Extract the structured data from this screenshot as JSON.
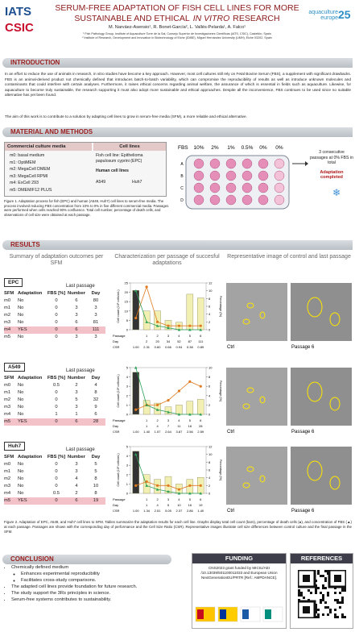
{
  "header": {
    "logos": [
      "IATS",
      "CSIC"
    ],
    "title_line1": "SERUM-FREE ADAPTATION OF FISH CELL LINES FOR MORE",
    "title_line2": [
      "SUSTAINABLE AND ETHICAL",
      "IN VITRO",
      "RESEARCH"
    ],
    "authors": "M. Narváez-Asensio¹, R. Bonet-García², L. Vallés-Pelarda¹, A. Falco¹",
    "affiliations": [
      "¹ Fish Pathology Group, Institute of Aquaculture Torre de la Sal, Consejo Superior de Investigaciones Científicas (IATS, CSIC), Castellón, Spain",
      "² Institute of Research, Development and Innovation in Biotechnology of Elche (IDiBE), Miguel Hernández University (UMH), Elche 03202, Spain"
    ],
    "event": [
      "aquaculture",
      "europe",
      "25"
    ]
  },
  "introduction": {
    "heading": "INTRODUCTION",
    "text": "In an effort to reduce the use of animals in research, in vitro studies have become a key approach. However, most cell cultures still rely on Fetal Bovine Serum (FBS), a supplement with significant drawbacks. FBS is an animal-derived product not chemically defined that introduces batch-to-batch variability, which can compromise the reproducibility of results as well as introduce unknown molecules and contaminants that could interfere with certain analyses. Furthermore, it raises ethical concerns regarding animal welfare, the assurance of which is essential in fields such as aquaculture. Likewise, for aquaculture to become truly sustainable, the research supporting it must also adopt more sustainable and ethical approaches. Despite all the inconvenience, FBS continues to be used since no suitable alternative has yet been found.",
    "aim": "The aim of this work is to contribute to a solution by adapting cell lines to grow in serum-free media (SFM), a more reliable and ethical alternative."
  },
  "methods": {
    "heading": "MATERIAL AND METHODS",
    "media_title": "Commercial culture media",
    "media": [
      "m0: basal medium",
      "m1: OptiMEM",
      "m2: MegaCell DMEM",
      "m3: MegaCell RPMI",
      "m4: ExCell 293",
      "m5: DMEM/F12 PLUS"
    ],
    "cells_title": "Cell lines",
    "fish": "Fish cell line: Epithelioma papulosum cyprini (EPC)",
    "human_title": "Human cell lines",
    "human": [
      "A549",
      "Huh7"
    ],
    "plate_label": "FBS",
    "plate_fbs": [
      "10%",
      "2%",
      "1%",
      "0.5%",
      "0%",
      "0%"
    ],
    "plate_rows": [
      "A",
      "B",
      "C",
      "D"
    ],
    "passages_note": "3 consecutive passages at 0% FBS in total",
    "completed": "Adaptation completed",
    "caption": "Figure 1. Adaptation process for fish (EPC) and human (A549, Huh7) cell lines to serum-free media. The process involved reducing FBS concentration from 10% to 0% in five different commercial media. Passages were performed when cells reached 90% confluence. Total cell number, percentage of death cells, and observations of cell size were obtained at each passage."
  },
  "results": {
    "heading": "RESULTS",
    "columns": [
      "Summary of adaptation outcomes per SFM",
      "Characterization per passage of succesful adaptations",
      "Representative image of control and last passage"
    ],
    "table_group": "Last passage",
    "table_header": [
      "SFM",
      "Adaptation",
      "FBS [%]",
      "Number",
      "Day"
    ],
    "chart_labels": {
      "y": "Cell count (10⁶ cells/mL)",
      "y2": "Percentage (%)",
      "rows": [
        "Passage",
        "Day",
        "CSR"
      ]
    },
    "blocks": [
      {
        "name": "EPC",
        "highlight": 4,
        "rows": [
          [
            "m0",
            "No",
            0,
            6,
            80
          ],
          [
            "m1",
            "No",
            0,
            3,
            3
          ],
          [
            "m2",
            "No",
            0,
            3,
            3
          ],
          [
            "m3",
            "No",
            0,
            6,
            81
          ],
          [
            "m4",
            "YES",
            0,
            6,
            111
          ],
          [
            "m5",
            "No",
            0,
            3,
            3
          ]
        ],
        "chart": {
          "passage": [
            null,
            1,
            2,
            3,
            4,
            5,
            6
          ],
          "day": [
            null,
            2,
            20,
            34,
            52,
            87,
            111
          ],
          "csr": [
            "1.00",
            "2.31",
            "0.60",
            "0.66",
            "0.94",
            "0.38",
            "0.89"
          ],
          "cells": [
            21,
            10,
            10,
            5,
            4,
            19,
            17
          ],
          "death": [
            3,
            11,
            2,
            1,
            1,
            1,
            1
          ],
          "fbs": [
            10,
            2,
            1,
            0.5,
            0,
            0,
            0
          ],
          "ylim": [
            0,
            25
          ],
          "yticks": [
            0,
            5,
            10,
            15,
            20,
            25
          ],
          "y2lim": [
            0,
            12
          ],
          "y2ticks": [
            0,
            2,
            4,
            6,
            8,
            10,
            12
          ]
        },
        "images": [
          "Ctrl",
          "Passage 6"
        ]
      },
      {
        "name": "A549",
        "highlight": 5,
        "rows": [
          [
            "m0",
            "No",
            0.5,
            2,
            4
          ],
          [
            "m1",
            "No",
            0,
            3,
            8
          ],
          [
            "m2",
            "No",
            0,
            5,
            32
          ],
          [
            "m3",
            "No",
            0,
            3,
            9
          ],
          [
            "m4",
            "No",
            1,
            1,
            6
          ],
          [
            "m5",
            "YES",
            0,
            6,
            28
          ]
        ],
        "chart": {
          "passage": [
            null,
            1,
            2,
            3,
            4,
            5,
            6
          ],
          "day": [
            null,
            1,
            4,
            7,
            11,
            16,
            28
          ],
          "csr": [
            "1.00",
            "1.40",
            "1.57",
            "2.64",
            "3.87",
            "2.56",
            "2.59"
          ],
          "cells": [
            4.5,
            1.5,
            1.2,
            0.8,
            1,
            1.4,
            1.6
          ],
          "death": [
            1,
            2,
            2,
            3,
            5,
            7,
            6
          ],
          "fbs": [
            10,
            2,
            1,
            0.5,
            0,
            0,
            0
          ],
          "ylim": [
            0,
            5
          ],
          "yticks": [
            0,
            1,
            2,
            3,
            4,
            5
          ],
          "y2lim": [
            0,
            10
          ],
          "y2ticks": [
            0,
            2,
            4,
            6,
            8,
            10
          ]
        },
        "images": [
          "Ctrl",
          "Passage 6"
        ]
      },
      {
        "name": "Huh7",
        "highlight": 5,
        "rows": [
          [
            "m0",
            "No",
            0,
            3,
            5
          ],
          [
            "m1",
            "No",
            0,
            3,
            5
          ],
          [
            "m2",
            "No",
            0,
            4,
            8
          ],
          [
            "m3",
            "No",
            0,
            4,
            10
          ],
          [
            "m4",
            "No",
            0.5,
            2,
            8
          ],
          [
            "m5",
            "YES",
            0,
            6,
            19
          ]
        ],
        "chart": {
          "passage": [
            null,
            1,
            2,
            3,
            4,
            5,
            6
          ],
          "day": [
            null,
            1,
            4,
            5,
            10,
            16,
            19
          ],
          "csr": [
            "1.00",
            "1.34",
            "2.51",
            "5.05",
            "2.37",
            "2.86",
            "1.40"
          ],
          "cells": [
            4.5,
            2,
            1.5,
            1.8,
            1,
            1.5,
            1.7
          ],
          "death": [
            2,
            3,
            2,
            2,
            1,
            2,
            2
          ],
          "fbs": [
            10,
            2,
            1,
            0.5,
            0,
            0,
            0
          ],
          "ylim": [
            0,
            5
          ],
          "yticks": [
            0,
            1,
            2,
            3,
            4,
            5
          ],
          "y2lim": [
            0,
            12
          ],
          "y2ticks": [
            0,
            2,
            4,
            6,
            8,
            10,
            12
          ]
        },
        "images": [
          "Ctrl",
          "Passage 6"
        ]
      }
    ],
    "caption": "Figure 2. Adaptation of EPC, A549, and Huh7 cell lines to SFM. Tables summarize the adaptation results for each cell line. Graphs display total cell count (bars), percentage of death cells (●), and concentration of FBS (▲) at each passage. Passages are shown with the corresponding day of performance and the Cell Size Ratio (CSR). Representative images illustrate cell size differences between control culture and the final passage in the SFM."
  },
  "conclusion": {
    "heading": "CONCLUSION",
    "items": [
      {
        "text": "Chemically defined medium",
        "sub": [
          "Enhances experimental reproducibility",
          "Facilitates cross-study comparisons."
        ]
      },
      {
        "text": "The adapted cell lines provide foundation for future research."
      },
      {
        "text": "The study support the 3Rs principles in science."
      },
      {
        "text": "Serum-free systems contributes to sustainability."
      }
    ]
  },
  "funding": {
    "heading": "FUNDING",
    "text": "CNS2023 grant funded by MICIU/AEI /10.13039/501100011033 and European Union NextGenerationEU/PRTR [Ref.: AMPDANCE]."
  },
  "references": {
    "heading": "REFERENCES"
  }
}
